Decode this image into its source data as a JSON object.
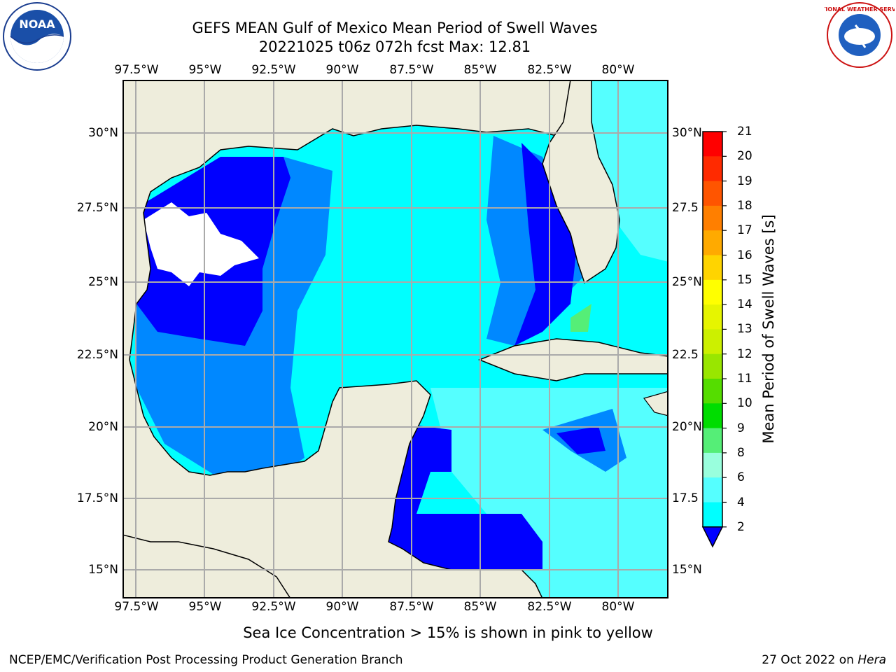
{
  "title": {
    "line1": "GEFS MEAN Gulf of Mexico Mean Period of Swell Waves",
    "line2": "20221025 t06z 072h fcst   Max: 12.81"
  },
  "map": {
    "lon_labels_top": [
      "97.5°W",
      "95°W",
      "92.5°W",
      "90°W",
      "87.5°W",
      "85°W",
      "82.5°W",
      "80°W"
    ],
    "lon_labels_bottom": [
      "97.5°W",
      "95°W",
      "92.5°W",
      "90°W",
      "87.5°W",
      "85°W",
      "82.5°W",
      "80°W"
    ],
    "lat_labels_left": [
      "30°N",
      "27.5°N",
      "25°N",
      "22.5°N",
      "20°N",
      "17.5°N",
      "15°N"
    ],
    "lat_labels_right": [
      "30°N",
      "27.5",
      "25°N",
      "22.5",
      "20°N",
      "17.5",
      "15°N"
    ],
    "colors": {
      "land": "#eeeddc",
      "grid": "#aaaaaa",
      "coast": "#000000",
      "no_data": "#ffffff"
    }
  },
  "colorbar": {
    "label": "Mean Period of Swell Waves [s]",
    "ticks": [
      "21",
      "20",
      "19",
      "18",
      "17",
      "16",
      "15",
      "14",
      "13",
      "12",
      "11",
      "10",
      "9",
      "8",
      "6",
      "4",
      "2"
    ],
    "colors": [
      "#ff0000",
      "#ff2a00",
      "#ff5500",
      "#ff7f00",
      "#ffaa00",
      "#ffd400",
      "#ffff00",
      "#e6f500",
      "#ccf000",
      "#99e600",
      "#55dd00",
      "#00dd00",
      "#55ee77",
      "#99ffdd",
      "#55ffff",
      "#00ffff",
      "#0088ff",
      "#0000ff"
    ]
  },
  "note": "Sea Ice Concentration > 15% is shown in pink to yellow",
  "footer": {
    "left": "NCEP/EMC/Verification Post Processing Product Generation Branch",
    "right_date": "27 Oct 2022 on ",
    "right_host": "Hera"
  },
  "logos": {
    "noaa_text": "NOAA",
    "nws_text": "NATIONAL WEATHER SERVICE"
  }
}
